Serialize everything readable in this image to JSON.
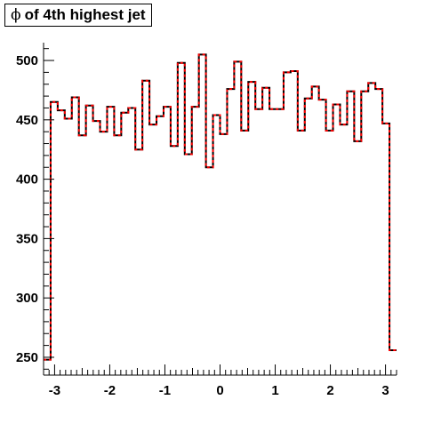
{
  "chart_data": {
    "type": "histogram",
    "title_symbol": "ϕ",
    "title_text": "of 4th highest jet",
    "xlabel": "",
    "ylabel": "",
    "xlim": [
      -3.2,
      3.2
    ],
    "ylim": [
      235,
      515
    ],
    "x_ticks": [
      -3,
      -2,
      -1,
      0,
      1,
      2,
      3
    ],
    "x_tick_labels": [
      "-3",
      "-2",
      "-1",
      "0",
      "1",
      "2",
      "3"
    ],
    "y_ticks": [
      250,
      300,
      350,
      400,
      450,
      500
    ],
    "y_tick_labels": [
      "250",
      "300",
      "350",
      "400",
      "450",
      "500"
    ],
    "grid": false,
    "legend": "none",
    "bin_low": -3.2,
    "bin_width": 0.128,
    "series": [
      {
        "style": "solid-black",
        "values": [
          248,
          465,
          458,
          451,
          469,
          437,
          462,
          449,
          440,
          461,
          437,
          456,
          460,
          425,
          483,
          446,
          453,
          461,
          428,
          498,
          421,
          461,
          505,
          410,
          454,
          438,
          476,
          499,
          441,
          482,
          459,
          477,
          459,
          459,
          490,
          491,
          441,
          468,
          478,
          467,
          441,
          463,
          446,
          474,
          432,
          474,
          481,
          476,
          447,
          256
        ]
      },
      {
        "style": "dashed-red",
        "values": [
          248,
          465,
          458,
          451,
          469,
          437,
          462,
          449,
          440,
          461,
          437,
          456,
          460,
          425,
          483,
          446,
          453,
          461,
          428,
          498,
          421,
          461,
          505,
          410,
          454,
          438,
          476,
          499,
          441,
          482,
          459,
          477,
          459,
          459,
          490,
          491,
          441,
          468,
          478,
          467,
          441,
          463,
          446,
          474,
          432,
          474,
          481,
          476,
          447,
          256
        ]
      }
    ],
    "colors": {
      "solid": "#000000",
      "dashed": "#ff0000"
    }
  }
}
